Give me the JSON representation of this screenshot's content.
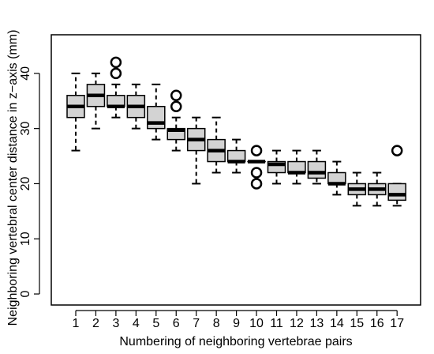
{
  "chart_data": {
    "type": "boxplot",
    "xlabel": "Numbering of neighboring vertebrae pairs",
    "ylabel": "Neighboring vertebral center distance in z−axis (mm)",
    "ylim": [
      -2,
      47
    ],
    "yticks": [
      0,
      10,
      20,
      30,
      40
    ],
    "categories": [
      "1",
      "2",
      "3",
      "4",
      "5",
      "6",
      "7",
      "8",
      "9",
      "10",
      "11",
      "12",
      "13",
      "14",
      "15",
      "16",
      "17"
    ],
    "box_color": "#d3d3d3",
    "boxes": [
      {
        "whisker_low": 26,
        "q1": 32,
        "median": 34,
        "q3": 36,
        "whisker_high": 40,
        "outliers": []
      },
      {
        "whisker_low": 30,
        "q1": 34,
        "median": 36,
        "q3": 38,
        "whisker_high": 40,
        "outliers": []
      },
      {
        "whisker_low": 32,
        "q1": 34,
        "median": 34,
        "q3": 36,
        "whisker_high": 38,
        "outliers": [
          40,
          42
        ]
      },
      {
        "whisker_low": 30,
        "q1": 32,
        "median": 34,
        "q3": 36,
        "whisker_high": 38,
        "outliers": []
      },
      {
        "whisker_low": 28,
        "q1": 30,
        "median": 31,
        "q3": 34,
        "whisker_high": 38,
        "outliers": []
      },
      {
        "whisker_low": 26,
        "q1": 28,
        "median": 29.7,
        "q3": 30,
        "whisker_high": 32,
        "outliers": [
          34,
          36
        ]
      },
      {
        "whisker_low": 20,
        "q1": 26,
        "median": 28,
        "q3": 30,
        "whisker_high": 32,
        "outliers": []
      },
      {
        "whisker_low": 22,
        "q1": 24,
        "median": 26,
        "q3": 28,
        "whisker_high": 32,
        "outliers": []
      },
      {
        "whisker_low": 22,
        "q1": 24,
        "median": 24,
        "q3": 26,
        "whisker_high": 28,
        "outliers": []
      },
      {
        "whisker_low": 24,
        "q1": 24,
        "median": 24,
        "q3": 24,
        "whisker_high": 24,
        "outliers": [
          20,
          22,
          26
        ]
      },
      {
        "whisker_low": 20,
        "q1": 22,
        "median": 23.5,
        "q3": 24,
        "whisker_high": 26,
        "outliers": []
      },
      {
        "whisker_low": 20,
        "q1": 22,
        "median": 22,
        "q3": 24,
        "whisker_high": 26,
        "outliers": []
      },
      {
        "whisker_low": 20,
        "q1": 21,
        "median": 22,
        "q3": 24,
        "whisker_high": 26,
        "outliers": []
      },
      {
        "whisker_low": 18,
        "q1": 20,
        "median": 20,
        "q3": 22,
        "whisker_high": 24,
        "outliers": []
      },
      {
        "whisker_low": 16,
        "q1": 18,
        "median": 19,
        "q3": 20,
        "whisker_high": 22,
        "outliers": []
      },
      {
        "whisker_low": 16,
        "q1": 18,
        "median": 19,
        "q3": 20,
        "whisker_high": 22,
        "outliers": []
      },
      {
        "whisker_low": 16,
        "q1": 17,
        "median": 18,
        "q3": 20,
        "whisker_high": 20,
        "outliers": [
          26
        ]
      }
    ]
  }
}
